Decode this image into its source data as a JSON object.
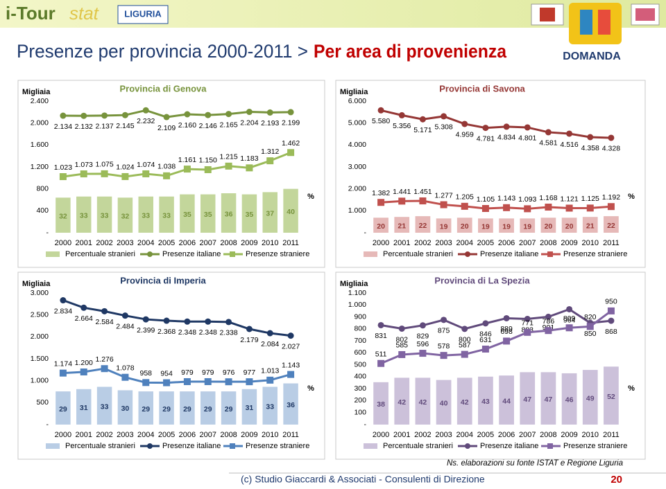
{
  "header": {
    "logo_a": "i-Tour",
    "logo_b": "stat",
    "region": "LIGURIA",
    "title": "Presenze per provincia  2000-2011 > ",
    "title_highlight": "Per area di provenienza",
    "section": "DOMANDA"
  },
  "note": "Ns. elaborazioni su fonte ISTAT e Regione Liguria",
  "footer": "(c) Studio Giaccardi & Associati - Consulenti di Direzione",
  "page": 20,
  "chart_data": [
    {
      "type": "combo",
      "title": "Provincia di Genova",
      "y_label": "Migliaia",
      "y2_label": "%",
      "categories": [
        "2000",
        "2001",
        "2002",
        "2003",
        "2004",
        "2005",
        "2006",
        "2007",
        "2008",
        "2009",
        "2010",
        "2011"
      ],
      "ylim": [
        0,
        2400
      ],
      "yticks": [
        {
          "value": 0,
          "label": "-"
        },
        400,
        800,
        {
          "value": 1200,
          "label": "1.200"
        },
        {
          "value": 1600,
          "label": "1.600"
        },
        {
          "value": 2000,
          "label": "2.000"
        },
        {
          "value": 2400,
          "label": "2.400"
        }
      ],
      "y2lim": [
        0,
        120
      ],
      "series": [
        {
          "name": "Percentuale stranieri",
          "color": "#c3d69b",
          "axis": "y2",
          "values": [
            32,
            33,
            33,
            32,
            33,
            33,
            35,
            35,
            36,
            35,
            37,
            40
          ]
        },
        {
          "name": "Presenze italiane",
          "color": "#77933c",
          "values": [
            2134,
            2132,
            2137,
            2145,
            2232,
            2109,
            2160,
            2146,
            2165,
            2204,
            2193,
            2199
          ],
          "value_labels": [
            "2.134",
            "2.132",
            "2.137",
            "2.145",
            "2.232",
            "2.109",
            "2.160",
            "2.146",
            "2.165",
            "2.204",
            "2.193",
            "2.199"
          ]
        },
        {
          "name": "Presenze straniere",
          "color": "#9bbb59",
          "values": [
            1023,
            1073,
            1075,
            1024,
            1074,
            1038,
            1161,
            1150,
            1215,
            1183,
            1312,
            1462
          ],
          "value_labels": [
            "1.023",
            "1.073",
            "1.075",
            "1.024",
            "1.074",
            "1.038",
            "1.161",
            "1.150",
            "1.215",
            "1.183",
            "1.312",
            "1.462"
          ]
        }
      ]
    },
    {
      "type": "combo",
      "title": "Provincia di Savona",
      "y_label": "Migliaia",
      "y2_label": "%",
      "categories": [
        "2000",
        "2001",
        "2002",
        "2003",
        "2004",
        "2005",
        "2006",
        "2007",
        "2008",
        "2009",
        "2010",
        "2011"
      ],
      "ylim": [
        0,
        6000
      ],
      "yticks": [
        {
          "value": 0,
          "label": "-"
        },
        {
          "value": 1000,
          "label": "1.000"
        },
        {
          "value": 2000,
          "label": "2.000"
        },
        {
          "value": 3000,
          "label": "3.000"
        },
        {
          "value": 4000,
          "label": "4.000"
        },
        {
          "value": 5000,
          "label": "5.000"
        },
        {
          "value": 6000,
          "label": "6.000"
        }
      ],
      "y2lim": [
        0,
        175
      ],
      "series": [
        {
          "name": "Percentuale stranieri",
          "color": "#e6b9b8",
          "axis": "y2",
          "values": [
            20,
            21,
            22,
            19,
            20,
            19,
            19,
            19,
            20,
            20,
            21,
            22
          ]
        },
        {
          "name": "Presenze italiane",
          "color": "#953735",
          "values": [
            5580,
            5356,
            5171,
            5308,
            4959,
            4781,
            4834,
            4801,
            4581,
            4516,
            4358,
            4328
          ],
          "value_labels": [
            "5.580",
            "5.356",
            "5.171",
            "5.308",
            "4.959",
            "4.781",
            "4.834",
            "4.801",
            "4.581",
            "4.516",
            "4.358",
            "4.328"
          ]
        },
        {
          "name": "Presenze straniere",
          "color": "#c0504d",
          "values": [
            1382,
            1441,
            1451,
            1277,
            1205,
            1105,
            1143,
            1093,
            1168,
            1121,
            1125,
            1192
          ],
          "value_labels": [
            "1.382",
            "1.441",
            "1.451",
            "1.277",
            "1.205",
            "1.105",
            "1.143",
            "1.093",
            "1.168",
            "1.121",
            "1.125",
            "1.192"
          ]
        }
      ]
    },
    {
      "type": "combo",
      "title": "Provincia di Imperia",
      "y_label": "Migliaia",
      "y2_label": "%",
      "categories": [
        "2000",
        "2001",
        "2002",
        "2003",
        "2004",
        "2005",
        "2006",
        "2007",
        "2008",
        "2009",
        "2010",
        "2011"
      ],
      "ylim": [
        0,
        3000
      ],
      "yticks": [
        {
          "value": 0,
          "label": "-"
        },
        500,
        {
          "value": 1000,
          "label": "1.000"
        },
        {
          "value": 1500,
          "label": "1.500"
        },
        {
          "value": 2000,
          "label": "2.000"
        },
        {
          "value": 2500,
          "label": "2.500"
        },
        {
          "value": 3000,
          "label": "3.000"
        }
      ],
      "y2lim": [
        0,
        115
      ],
      "series": [
        {
          "name": "Percentuale stranieri",
          "color": "#b9cde5",
          "axis": "y2",
          "values": [
            29,
            31,
            33,
            30,
            29,
            29,
            29,
            29,
            29,
            31,
            33,
            36
          ]
        },
        {
          "name": "Presenze italiane",
          "color": "#1f3864",
          "values": [
            2834,
            2664,
            2584,
            2484,
            2399,
            2368,
            2348,
            2348,
            2338,
            2179,
            2084,
            2027
          ],
          "value_labels": [
            "2.834",
            "2.664",
            "2.584",
            "2.484",
            "2.399",
            "2.368",
            "2.348",
            "2.348",
            "2.338",
            "2.179",
            "2.084",
            "2.027"
          ]
        },
        {
          "name": "Presenze straniere",
          "color": "#4f81bd",
          "values": [
            1174,
            1200,
            1276,
            1078,
            958,
            954,
            979,
            979,
            976,
            977,
            1013,
            1143
          ],
          "value_labels": [
            "1.174",
            "1.200",
            "1.276",
            "1.078",
            "958",
            "954",
            "979",
            "979",
            "976",
            "977",
            "1.013",
            "1.143"
          ]
        }
      ]
    },
    {
      "type": "combo",
      "title": "Provincia di La Spezia",
      "y_label": "Migliaia",
      "y2_label": "%",
      "categories": [
        "2000",
        "2001",
        "2002",
        "2003",
        "2004",
        "2005",
        "2006",
        "2007",
        "2008",
        "2009",
        "2010",
        "2011"
      ],
      "ylim": [
        0,
        1100
      ],
      "yticks": [
        {
          "value": 0,
          "label": "-"
        },
        100,
        200,
        300,
        400,
        500,
        600,
        700,
        800,
        900,
        {
          "value": 1000,
          "label": "1.000"
        },
        {
          "value": 1100,
          "label": "1.100"
        }
      ],
      "y2lim": [
        0,
        118
      ],
      "series": [
        {
          "name": "Percentuale stranieri",
          "color": "#ccc1da",
          "axis": "y2",
          "values": [
            38,
            42,
            42,
            40,
            42,
            43,
            44,
            47,
            47,
            46,
            49,
            52
          ]
        },
        {
          "name": "Presenze italiane",
          "color": "#604a7b",
          "values": [
            831,
            802,
            829,
            875,
            800,
            846,
            889,
            883,
            901,
            964,
            850,
            868
          ]
        },
        {
          "name": "Presenze straniere",
          "color": "#8064a2",
          "values": [
            511,
            585,
            596,
            578,
            587,
            631,
            698,
            771,
            786,
            809,
            820,
            950
          ]
        }
      ]
    }
  ]
}
